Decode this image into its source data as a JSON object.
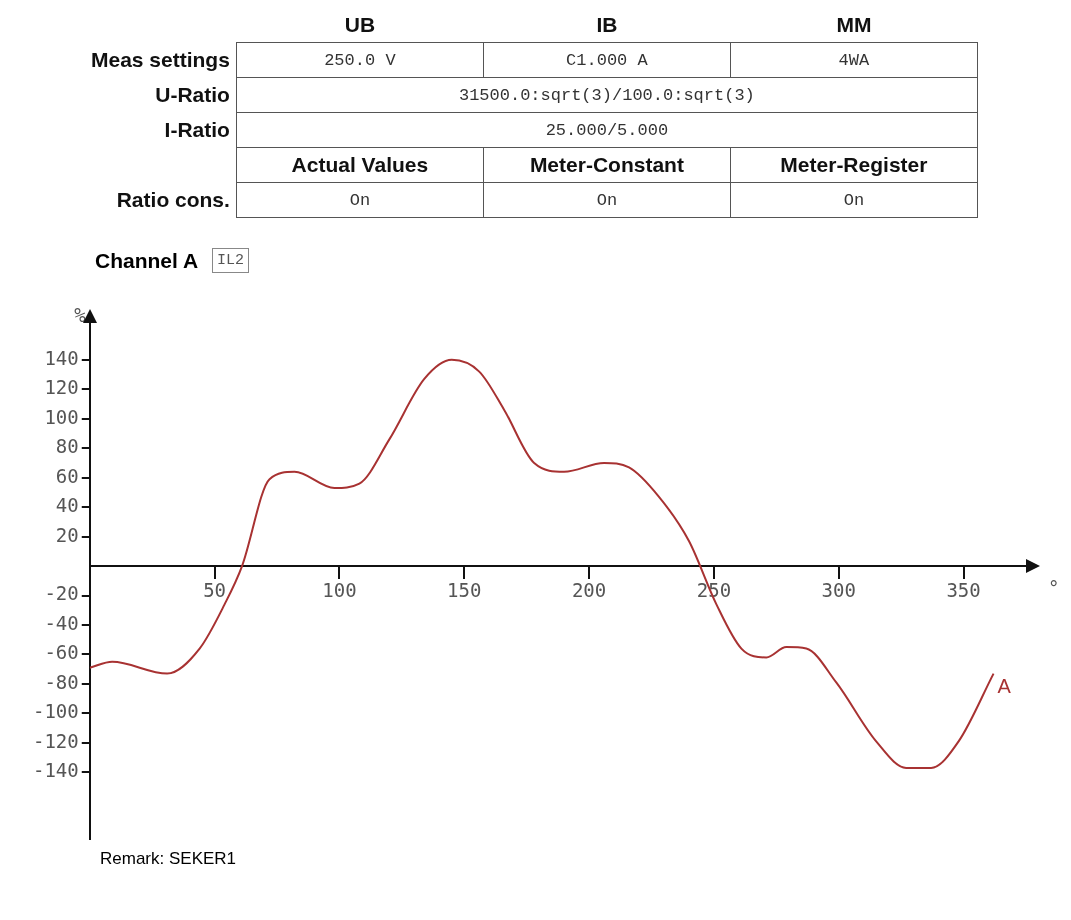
{
  "chart_data": [
    {
      "type": "other",
      "categories": [
        "UB",
        "IB",
        "MM"
      ],
      "y_categories": [
        "Meas settings",
        "U-Ratio",
        "I-Ratio",
        null,
        "Ratio cons."
      ],
      "cell_labels": [
        [
          "250.0 V",
          "C1.000 A",
          "4WA"
        ],
        [
          "31500.0:sqrt(3)/100.0:sqrt(3)",
          null,
          null
        ],
        [
          "25.000/5.000",
          null,
          null
        ],
        [
          "Actual Values",
          "Meter-Constant",
          "Meter-Register"
        ],
        [
          "On",
          "On",
          "On"
        ]
      ]
    },
    {
      "type": "line",
      "title": "Channel A",
      "ylabel": "%",
      "xlabel": "°",
      "annotations": [
        "IL2",
        "Remark: SEKER1"
      ],
      "x": [
        0,
        9,
        31,
        44,
        54,
        61,
        72,
        82,
        98,
        108,
        120,
        134,
        145,
        156,
        166,
        178,
        190,
        206,
        216,
        228,
        240,
        251,
        261,
        271,
        279,
        287,
        299,
        315,
        327,
        337,
        348,
        362
      ],
      "series": [
        {
          "name": "A",
          "color": "#a83232",
          "values": [
            -69,
            -65,
            -73,
            -56,
            -26,
            0,
            59,
            64,
            53,
            56,
            86,
            127,
            140,
            132,
            106,
            70,
            64,
            70,
            67,
            47,
            17,
            -26,
            -56,
            -62,
            -55,
            -56,
            -79,
            -119,
            -137,
            -137,
            -119,
            -73
          ]
        }
      ],
      "xlim": [
        0,
        375
      ],
      "ylim": [
        -185,
        165
      ],
      "xticks": [
        50,
        100,
        150,
        200,
        250,
        300,
        350
      ],
      "yticks": [
        -140,
        -120,
        -100,
        -80,
        -60,
        -40,
        -20,
        20,
        40,
        60,
        80,
        100,
        120,
        140
      ],
      "grid": false,
      "legend": false,
      "marker": "none",
      "line_style": "solid"
    }
  ]
}
